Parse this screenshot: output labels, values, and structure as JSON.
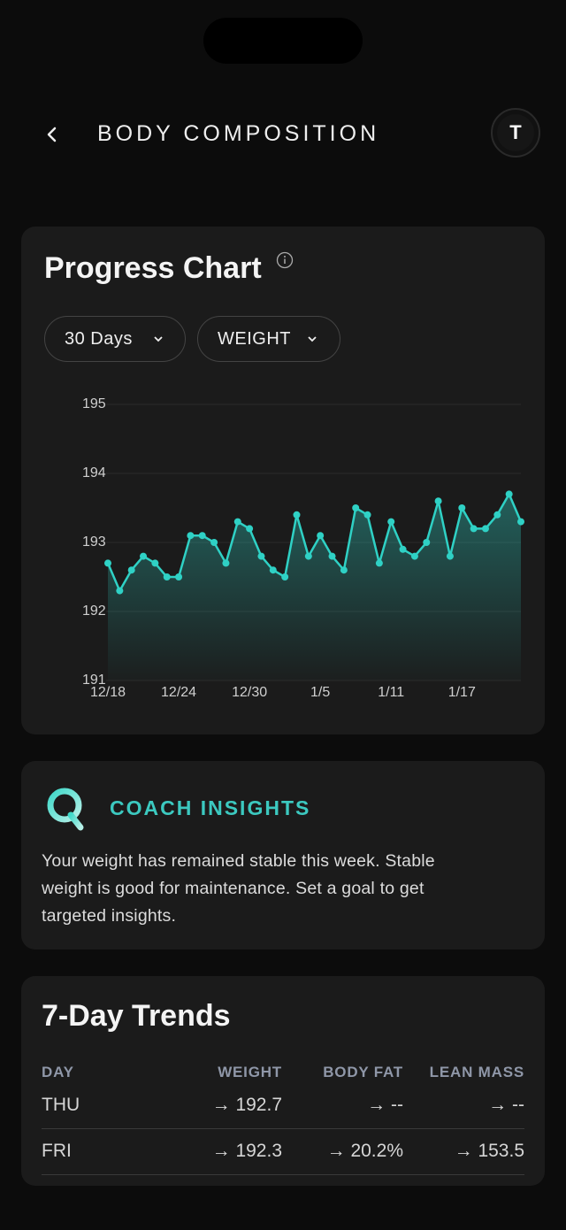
{
  "header": {
    "title": "BODY COMPOSITION",
    "avatar": "T"
  },
  "progress_card": {
    "title": "Progress Chart",
    "filters": [
      "30 Days",
      "WEIGHT"
    ]
  },
  "chart_data": {
    "type": "line",
    "categories": [
      "12/18",
      null,
      null,
      null,
      null,
      null,
      "12/24",
      null,
      null,
      null,
      null,
      null,
      "12/30",
      null,
      null,
      null,
      null,
      null,
      "1/5",
      null,
      null,
      null,
      null,
      null,
      "1/11",
      null,
      null,
      null,
      null,
      null,
      "1/17",
      null,
      null,
      null,
      null,
      null
    ],
    "values": [
      192.7,
      192.3,
      192.6,
      192.8,
      192.7,
      192.5,
      192.5,
      193.1,
      193.1,
      193.0,
      192.7,
      193.3,
      193.2,
      192.8,
      192.6,
      192.5,
      193.4,
      192.8,
      193.1,
      192.8,
      192.6,
      193.5,
      193.4,
      192.7,
      193.3,
      192.9,
      192.8,
      193.0,
      193.6,
      192.8,
      193.5,
      193.2,
      193.2,
      193.4,
      193.7,
      193.3
    ],
    "color": "#2fd1c5",
    "ylim": [
      191,
      195
    ],
    "yticks": [
      191,
      192,
      193,
      194,
      195
    ],
    "grid": true
  },
  "coach_insights": {
    "title": "COACH INSIGHTS",
    "text": "Your weight has remained stable this week. Stable weight is good for maintenance. Set a goal to get targeted insights."
  },
  "trends": {
    "title": "7-Day Trends",
    "columns": [
      "DAY",
      "WEIGHT",
      "BODY FAT",
      "LEAN MASS"
    ],
    "rows": [
      [
        "THU",
        "→ 192.7",
        "→ --",
        "→ --"
      ],
      [
        "FRI",
        "→ 192.3",
        "→ 20.2%",
        "→ 153.5"
      ]
    ]
  }
}
